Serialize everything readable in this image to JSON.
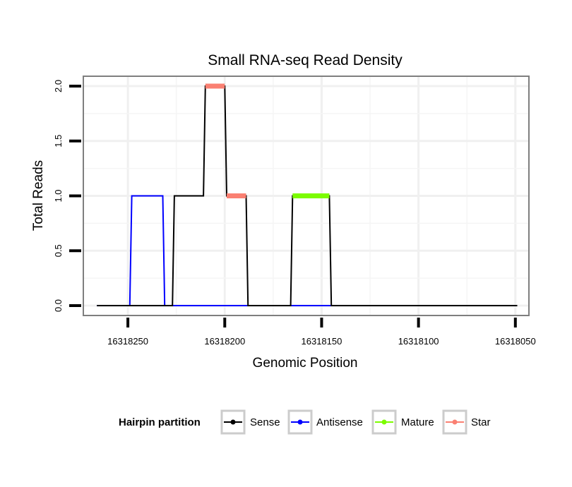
{
  "chart_data": {
    "type": "line",
    "title": "Small RNA-seq Read Density",
    "xlabel": "Genomic Position",
    "ylabel": "Total Reads",
    "x_reversed": true,
    "xlim": [
      16318273,
      16318043
    ],
    "ylim": [
      -0.09,
      2.09
    ],
    "x_ticks": [
      16318250,
      16318200,
      16318150,
      16318100,
      16318050
    ],
    "x_tick_labels": [
      "16318250",
      "16318200",
      "16318150",
      "16318100",
      "16318050"
    ],
    "y_ticks": [
      0.0,
      0.5,
      1.0,
      1.5,
      2.0
    ],
    "y_tick_labels": [
      "0.0",
      "0.5",
      "1.0",
      "1.5",
      "2.0"
    ],
    "grid": true,
    "legend": {
      "title": "Hairpin partition",
      "placement": "bottom",
      "entries": [
        {
          "label": "Sense",
          "color": "#000000"
        },
        {
          "label": "Antisense",
          "color": "#0000ff"
        },
        {
          "label": "Mature",
          "color": "#7cfc00"
        },
        {
          "label": "Star",
          "color": "#fa8072"
        }
      ]
    },
    "series": [
      {
        "name": "Sense",
        "color": "#000000",
        "x": [
          16318266,
          16318227,
          16318226,
          16318221,
          16318211,
          16318210,
          16318200,
          16318199,
          16318189,
          16318188,
          16318166,
          16318165,
          16318146,
          16318145,
          16318049
        ],
        "values": [
          0,
          0,
          1,
          1,
          1,
          2,
          2,
          1,
          1,
          0,
          0,
          1,
          1,
          0,
          0
        ]
      },
      {
        "name": "Antisense",
        "color": "#0000ff",
        "x": [
          16318266,
          16318249,
          16318248,
          16318232,
          16318231,
          16318188,
          16318166,
          16318145
        ],
        "values": [
          0,
          0,
          1,
          1,
          0,
          0,
          0,
          0
        ]
      },
      {
        "name": "Mature",
        "color": "#7cfc00",
        "x": [
          16318165,
          16318146
        ],
        "values": [
          1,
          1
        ]
      },
      {
        "name": "Star",
        "color": "#fa8072",
        "segments": [
          {
            "x": [
              16318210,
              16318200
            ],
            "values": [
              2,
              2
            ]
          },
          {
            "x": [
              16318199,
              16318189
            ],
            "values": [
              1,
              1
            ]
          }
        ]
      }
    ]
  }
}
